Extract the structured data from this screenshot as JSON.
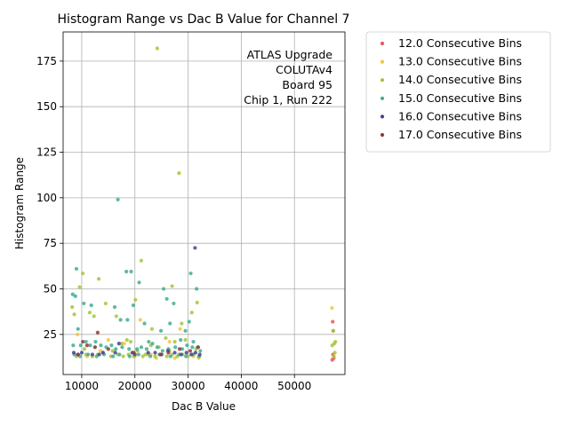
{
  "chart_data": {
    "type": "scatter",
    "title": "Histogram Range vs Dac B Value for Channel 7",
    "xlabel": "Dac B Value",
    "ylabel": "Histogram Range",
    "xlim": [
      6500,
      59500
    ],
    "ylim": [
      3,
      191
    ],
    "xticks": [
      10000,
      20000,
      30000,
      40000,
      50000
    ],
    "xtick_labels": [
      "10000",
      "20000",
      "30000",
      "40000",
      "50000"
    ],
    "yticks": [
      25,
      50,
      75,
      100,
      125,
      150,
      175
    ],
    "ytick_labels": [
      "25",
      "50",
      "75",
      "100",
      "125",
      "150",
      "175"
    ],
    "grid": true,
    "legend_position": "outside-right",
    "annotation": [
      "ATLAS Upgrade",
      "COLUTAv4",
      "Board 95",
      "Chip 1, Run 222"
    ],
    "series": [
      {
        "name": "12.0 Consecutive Bins",
        "color": "#e8585a",
        "points": [
          [
            57200,
            32
          ],
          [
            57300,
            27
          ],
          [
            57100,
            11
          ],
          [
            57400,
            12
          ],
          [
            57250,
            14
          ]
        ]
      },
      {
        "name": "13.0 Consecutive Bins",
        "color": "#f5c542",
        "points": [
          [
            57050,
            39.5
          ],
          [
            9200,
            25
          ],
          [
            15000,
            22
          ],
          [
            18000,
            20
          ],
          [
            21000,
            33
          ],
          [
            24000,
            12
          ],
          [
            26500,
            21
          ],
          [
            28500,
            28
          ],
          [
            31000,
            13
          ],
          [
            32000,
            12
          ],
          [
            11000,
            13
          ],
          [
            13500,
            16
          ],
          [
            20000,
            13
          ],
          [
            23000,
            14
          ],
          [
            27500,
            12
          ]
        ]
      },
      {
        "name": "14.0 Consecutive Bins",
        "color": "#a4c639",
        "points": [
          [
            24200,
            182
          ],
          [
            28300,
            113.5
          ],
          [
            13200,
            55.5
          ],
          [
            21200,
            65.5
          ],
          [
            27000,
            51.5
          ],
          [
            9600,
            51
          ],
          [
            10200,
            58.5
          ],
          [
            8200,
            40
          ],
          [
            8600,
            36
          ],
          [
            11500,
            37
          ],
          [
            12300,
            35
          ],
          [
            14500,
            42
          ],
          [
            16500,
            35
          ],
          [
            19200,
            21
          ],
          [
            20100,
            44
          ],
          [
            22000,
            14
          ],
          [
            23200,
            28
          ],
          [
            25800,
            23
          ],
          [
            28800,
            31
          ],
          [
            30700,
            37
          ],
          [
            31700,
            42.5
          ],
          [
            57500,
            20
          ],
          [
            57300,
            27
          ],
          [
            57700,
            21
          ],
          [
            57100,
            19
          ],
          [
            57600,
            15
          ],
          [
            57400,
            13
          ],
          [
            9000,
            13
          ],
          [
            10800,
            14
          ],
          [
            12000,
            13
          ],
          [
            13000,
            14
          ],
          [
            14000,
            15
          ],
          [
            15500,
            13
          ],
          [
            16800,
            14
          ],
          [
            17800,
            13
          ],
          [
            18800,
            14
          ],
          [
            19800,
            13
          ],
          [
            21500,
            13
          ],
          [
            22500,
            14
          ],
          [
            23800,
            13
          ],
          [
            25000,
            14
          ],
          [
            26000,
            13
          ],
          [
            27000,
            14
          ],
          [
            28000,
            13
          ],
          [
            29000,
            14
          ],
          [
            30000,
            13
          ],
          [
            31000,
            14
          ],
          [
            32000,
            13
          ],
          [
            17500,
            20
          ],
          [
            18500,
            22
          ],
          [
            24500,
            18
          ],
          [
            26500,
            16
          ],
          [
            29500,
            22
          ],
          [
            10500,
            17
          ],
          [
            12500,
            18
          ],
          [
            15800,
            16
          ],
          [
            20500,
            16
          ],
          [
            23000,
            19
          ],
          [
            27500,
            21
          ],
          [
            31500,
            17
          ]
        ]
      },
      {
        "name": "15.0 Consecutive Bins",
        "color": "#3fae8f",
        "points": [
          [
            16800,
            99
          ],
          [
            9000,
            61
          ],
          [
            18400,
            59.5
          ],
          [
            19300,
            59.5
          ],
          [
            20800,
            53.5
          ],
          [
            25400,
            50
          ],
          [
            26000,
            44.5
          ],
          [
            30500,
            58.5
          ],
          [
            31600,
            50
          ],
          [
            8300,
            47
          ],
          [
            8800,
            46
          ],
          [
            10400,
            42
          ],
          [
            11800,
            41
          ],
          [
            16200,
            40
          ],
          [
            17300,
            33
          ],
          [
            18600,
            33
          ],
          [
            19700,
            41
          ],
          [
            21800,
            31
          ],
          [
            22600,
            21
          ],
          [
            24900,
            27
          ],
          [
            26600,
            31
          ],
          [
            27300,
            42
          ],
          [
            28600,
            22
          ],
          [
            29500,
            27
          ],
          [
            30200,
            32
          ],
          [
            31000,
            21
          ],
          [
            31800,
            18
          ],
          [
            8400,
            19
          ],
          [
            9300,
            28
          ],
          [
            9800,
            19
          ],
          [
            10800,
            21
          ],
          [
            11600,
            19
          ],
          [
            12600,
            21
          ],
          [
            13600,
            19
          ],
          [
            14600,
            18
          ],
          [
            15600,
            19
          ],
          [
            16400,
            17
          ],
          [
            17600,
            18
          ],
          [
            18900,
            17
          ],
          [
            20400,
            17
          ],
          [
            21200,
            18
          ],
          [
            22200,
            17
          ],
          [
            23300,
            20
          ],
          [
            24200,
            18
          ],
          [
            25200,
            16
          ],
          [
            26300,
            17
          ],
          [
            27600,
            18
          ],
          [
            28900,
            17
          ],
          [
            29800,
            19
          ],
          [
            30800,
            18
          ],
          [
            32300,
            16
          ],
          [
            8600,
            14
          ],
          [
            9700,
            13
          ],
          [
            11200,
            14
          ],
          [
            12800,
            13
          ],
          [
            14200,
            14
          ],
          [
            15900,
            13
          ],
          [
            17100,
            14
          ],
          [
            19000,
            13
          ],
          [
            20700,
            14
          ],
          [
            22900,
            13
          ],
          [
            24600,
            14
          ],
          [
            26700,
            13
          ],
          [
            28300,
            14
          ],
          [
            29600,
            13
          ],
          [
            30900,
            14
          ],
          [
            32100,
            13
          ]
        ]
      },
      {
        "name": "16.0 Consecutive Bins",
        "color": "#4a3f94",
        "points": [
          [
            31300,
            72.5
          ],
          [
            8500,
            15
          ],
          [
            10000,
            15
          ],
          [
            12000,
            14
          ],
          [
            14000,
            15
          ],
          [
            17000,
            20
          ],
          [
            20000,
            14
          ],
          [
            22500,
            15
          ],
          [
            25000,
            14
          ],
          [
            26200,
            16
          ],
          [
            27500,
            15
          ],
          [
            28700,
            14
          ],
          [
            29700,
            15
          ],
          [
            30600,
            14
          ],
          [
            31400,
            15
          ],
          [
            32200,
            14
          ],
          [
            9300,
            14
          ],
          [
            13300,
            14
          ],
          [
            16300,
            15
          ],
          [
            19500,
            15
          ],
          [
            23800,
            15
          ]
        ]
      },
      {
        "name": "17.0 Consecutive Bins",
        "color": "#8e3b3b",
        "points": [
          [
            13000,
            26
          ],
          [
            10200,
            21
          ],
          [
            11000,
            19
          ],
          [
            12500,
            18
          ],
          [
            15000,
            17
          ],
          [
            19800,
            15
          ],
          [
            24800,
            14
          ],
          [
            28400,
            17
          ],
          [
            30400,
            16
          ],
          [
            31900,
            18
          ],
          [
            26300,
            15
          ],
          [
            9300,
            14
          ]
        ]
      }
    ]
  }
}
